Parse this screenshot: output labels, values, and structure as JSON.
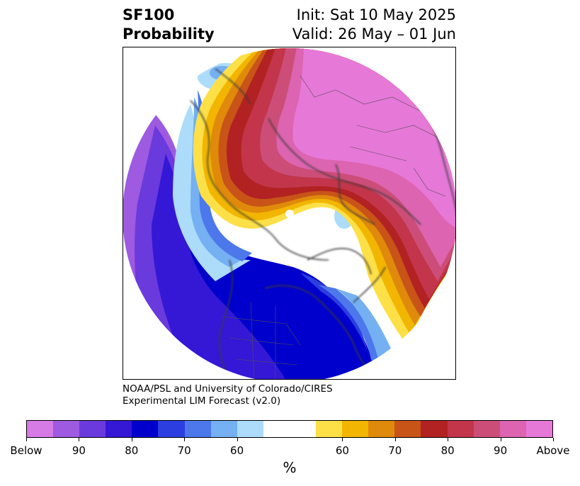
{
  "header": {
    "title_line1": "SF100",
    "title_line2": "Probability",
    "init": "Init: Sat 10 May 2025",
    "valid": "Valid: 26 May – 01 Jun"
  },
  "credit": {
    "line1": "NOAA/PSL and University of Colorado/CIRES",
    "line2": "Experimental LIM Forecast (v2.0)"
  },
  "colorbar": {
    "colors": [
      "#d67ae6",
      "#9e5ae0",
      "#6a3adc",
      "#3418d6",
      "#0000cc",
      "#2c3ee0",
      "#4c78ec",
      "#74b0f2",
      "#acdcfa",
      "#ffffff",
      "#ffffff",
      "#fde048",
      "#f2b600",
      "#e08a0c",
      "#c85418",
      "#b22222",
      "#c2354a",
      "#cc4e78",
      "#dc64b0",
      "#e678d8"
    ],
    "labels": [
      "Below",
      "90",
      "80",
      "70",
      "60",
      "60",
      "70",
      "80",
      "90",
      "Above"
    ],
    "unit": "%"
  },
  "map": {
    "projection": "north-polar-stereographic",
    "region": "Northern Hemisphere"
  }
}
